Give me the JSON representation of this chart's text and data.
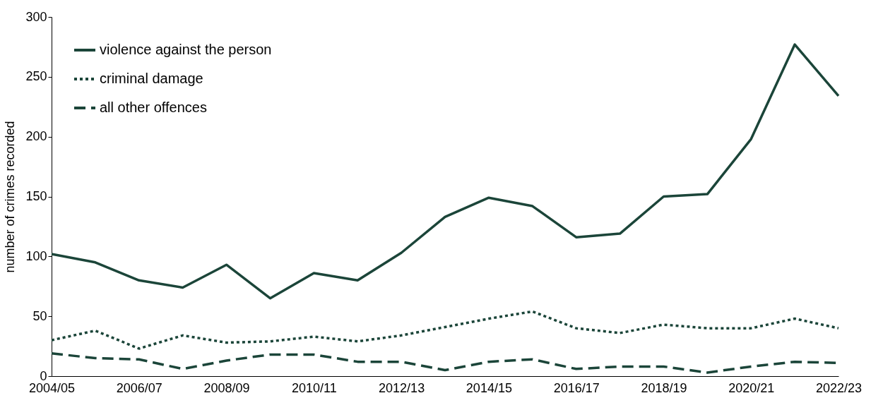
{
  "chart_data": {
    "type": "line",
    "ylabel": "number of crimes recorded",
    "categories": [
      "2004/05",
      null,
      "2006/07",
      null,
      "2008/09",
      null,
      "2010/11",
      null,
      "2012/13",
      null,
      "2014/15",
      null,
      "2016/17",
      null,
      "2018/19",
      null,
      "2020/21",
      null,
      "2022/23"
    ],
    "series": [
      {
        "name": "violence against the person",
        "color": "#1b4539",
        "line_style": "solid",
        "values": [
          102,
          95,
          80,
          74,
          93,
          65,
          86,
          80,
          103,
          133,
          149,
          142,
          116,
          119,
          150,
          152,
          198,
          277,
          234
        ]
      },
      {
        "name": "criminal damage",
        "color": "#1b4539",
        "line_style": "dotted",
        "values": [
          30,
          38,
          23,
          34,
          28,
          29,
          33,
          29,
          34,
          41,
          48,
          54,
          40,
          36,
          43,
          40,
          40,
          48,
          40
        ]
      },
      {
        "name": "all other offences",
        "color": "#1b4539",
        "line_style": "dashed",
        "values": [
          19,
          15,
          14,
          6,
          13,
          18,
          18,
          12,
          12,
          5,
          12,
          14,
          6,
          8,
          8,
          3,
          8,
          12,
          11
        ]
      }
    ],
    "ylim": [
      0,
      300
    ],
    "yticks": [
      0,
      50,
      100,
      150,
      200,
      250,
      300
    ],
    "grid": false,
    "legend": "top left",
    "marker": "none"
  }
}
